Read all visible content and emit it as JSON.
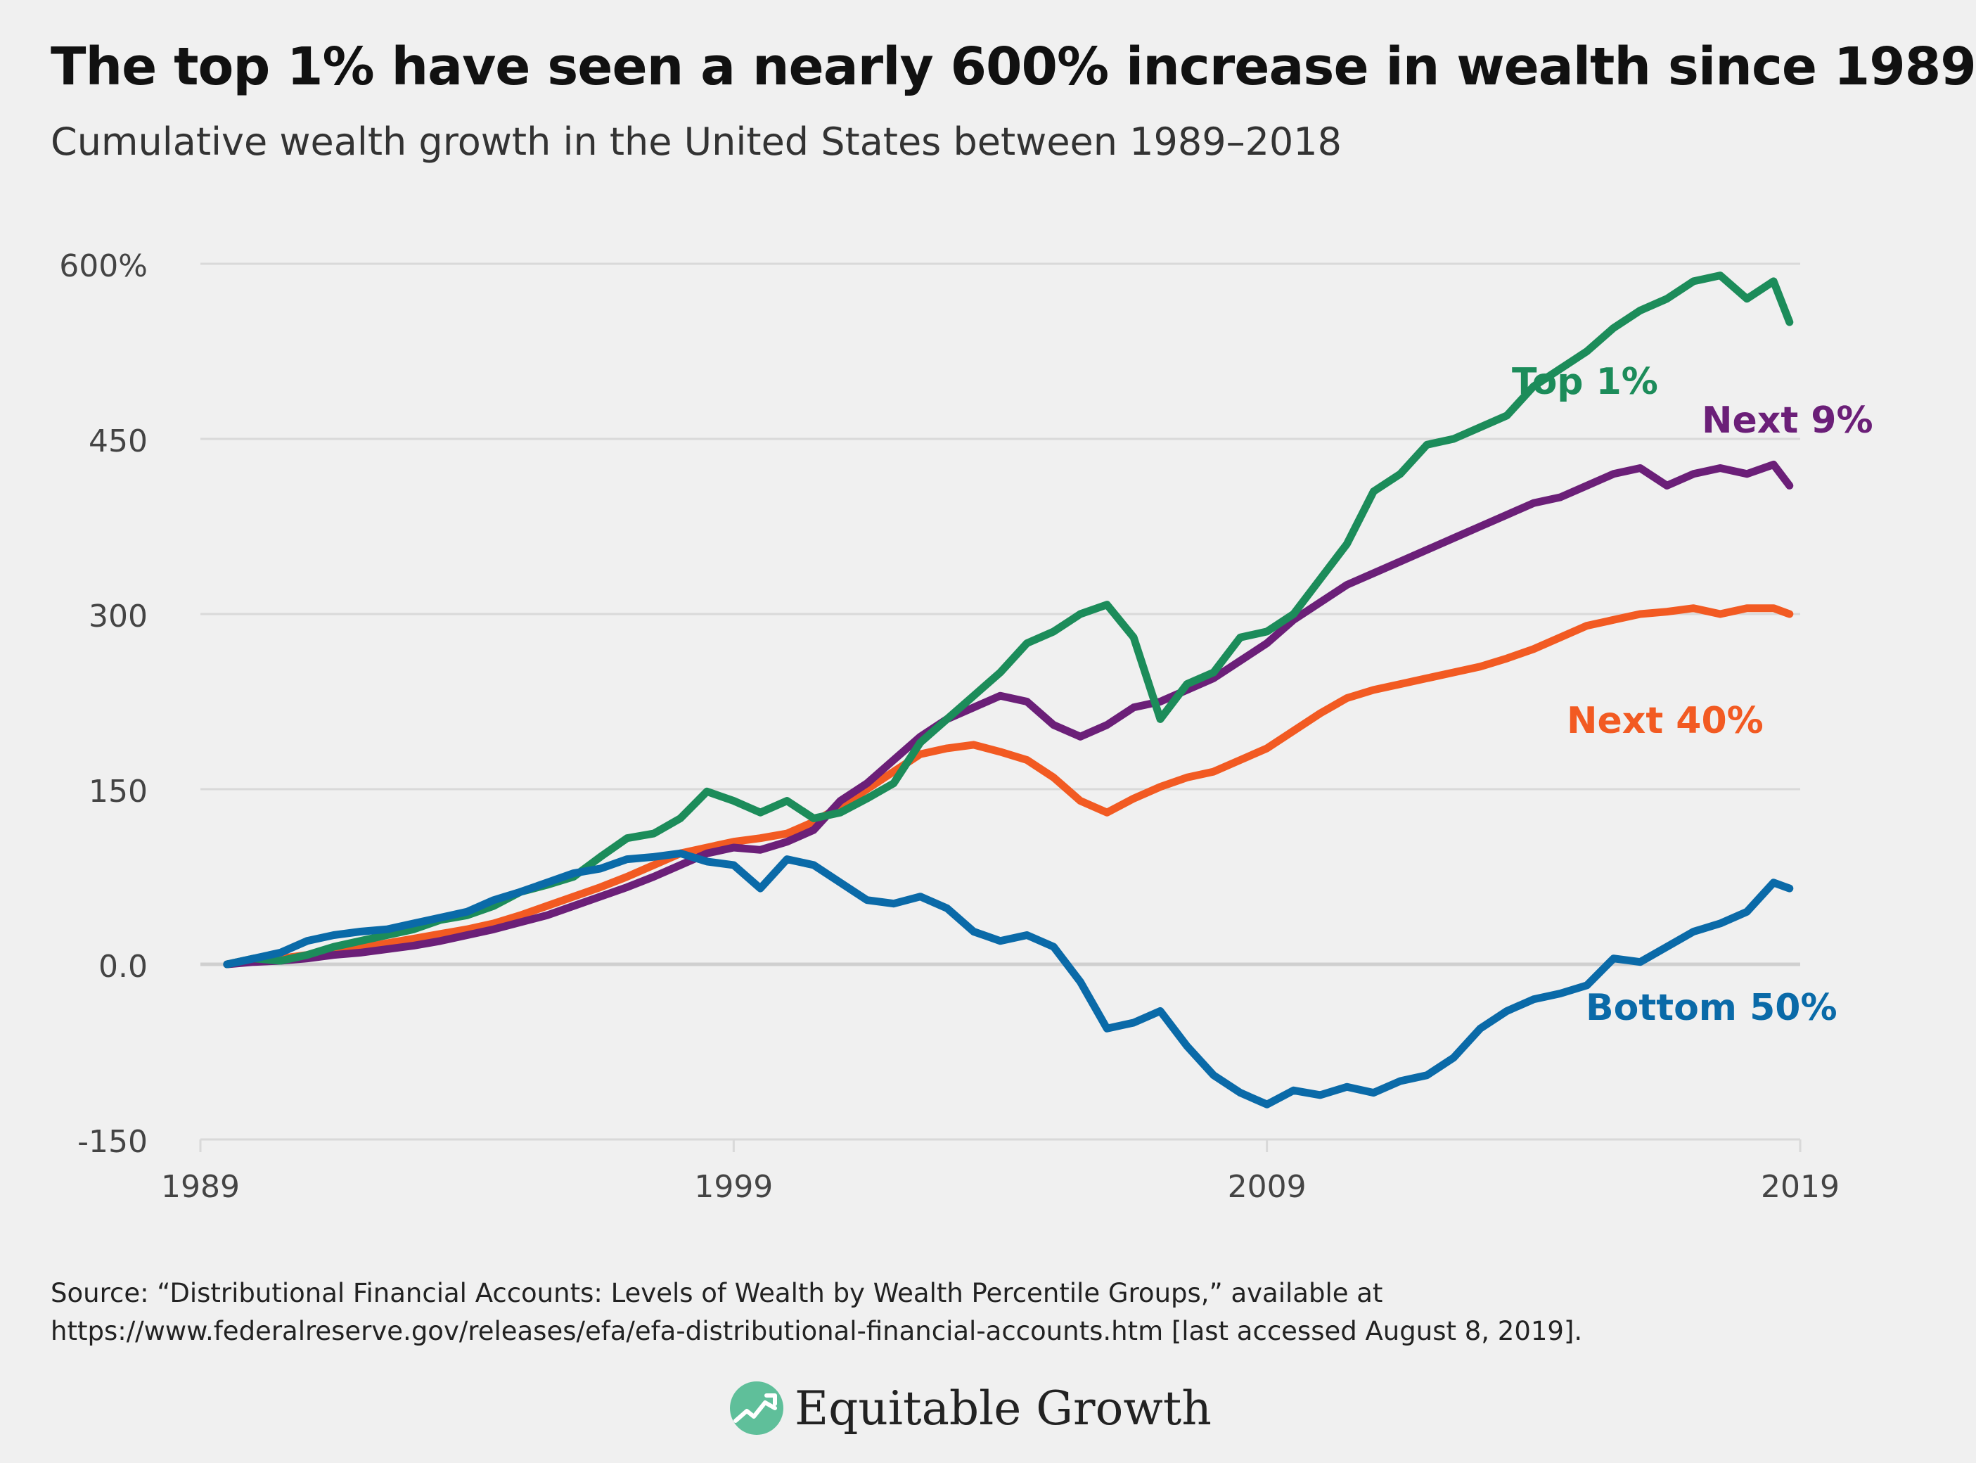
{
  "title": "The top 1% have seen a nearly 600% increase in wealth since 1989",
  "subtitle": "Cumulative wealth growth in the United States between 1989–2018",
  "source": {
    "line1": "Source: “Distributional Financial Accounts: Levels of Wealth by Wealth Percentile Groups,” available at",
    "line2": "https://www.federalreserve.gov/releases/efa/efa-distributional-financial-accounts.htm [last accessed August 8, 2019]."
  },
  "logo": {
    "text": "Equitable Growth",
    "icon": "rising-chart-logo-icon"
  },
  "colors": {
    "top1": "#1c8c5a",
    "next9": "#6b1f78",
    "next40": "#f25a22",
    "bottom50": "#0a6aa8",
    "grid": "#d9d9d9",
    "zero": "#cfcfcf",
    "tick": "#444444"
  },
  "chart_data": {
    "type": "line",
    "title": "The top 1% have seen a nearly 600% increase in wealth since 1989",
    "xlabel": "",
    "ylabel": "",
    "xlim": [
      1989,
      2019
    ],
    "ylim": [
      -150,
      600
    ],
    "x_ticks": [
      1989,
      1999,
      2009,
      2019
    ],
    "y_ticks": [
      -150,
      0,
      150,
      300,
      450,
      600
    ],
    "y_tick_labels": [
      "-150",
      "0.0",
      "150",
      "300",
      "450",
      "600%"
    ],
    "grid": "horizontal",
    "legend": "direct labels at line ends",
    "series": [
      {
        "name": "Top 1%",
        "color_key": "top1",
        "label": "Top 1%",
        "x": [
          1989.5,
          1990,
          1990.5,
          1991,
          1991.5,
          1992,
          1992.5,
          1993,
          1993.5,
          1994,
          1994.5,
          1995,
          1995.5,
          1996,
          1996.5,
          1997,
          1997.5,
          1998,
          1998.5,
          1999,
          1999.5,
          2000,
          2000.5,
          2001,
          2001.5,
          2002,
          2002.5,
          2003,
          2003.5,
          2004,
          2004.5,
          2005,
          2005.5,
          2006,
          2006.5,
          2007,
          2007.5,
          2008,
          2008.5,
          2009,
          2009.5,
          2010,
          2010.5,
          2011,
          2011.5,
          2012,
          2012.5,
          2013,
          2013.5,
          2014,
          2014.5,
          2015,
          2015.5,
          2016,
          2016.5,
          2017,
          2017.5,
          2018,
          2018.5,
          2018.8
        ],
        "values": [
          0,
          5,
          3,
          8,
          15,
          20,
          25,
          30,
          38,
          42,
          50,
          62,
          68,
          75,
          92,
          108,
          112,
          125,
          148,
          140,
          130,
          140,
          125,
          130,
          142,
          155,
          190,
          210,
          230,
          250,
          275,
          285,
          300,
          308,
          280,
          210,
          240,
          250,
          280,
          285,
          300,
          330,
          360,
          405,
          420,
          445,
          450,
          460,
          470,
          495,
          510,
          525,
          545,
          560,
          570,
          585,
          590,
          570,
          585,
          550
        ]
      },
      {
        "name": "Next 9%",
        "color_key": "next9",
        "label": "Next 9%",
        "x": [
          1989.5,
          1990,
          1990.5,
          1991,
          1991.5,
          1992,
          1992.5,
          1993,
          1993.5,
          1994,
          1994.5,
          1995,
          1995.5,
          1996,
          1996.5,
          1997,
          1997.5,
          1998,
          1998.5,
          1999,
          1999.5,
          2000,
          2000.5,
          2001,
          2001.5,
          2002,
          2002.5,
          2003,
          2003.5,
          2004,
          2004.5,
          2005,
          2005.5,
          2006,
          2006.5,
          2007,
          2007.5,
          2008,
          2008.5,
          2009,
          2009.5,
          2010,
          2010.5,
          2011,
          2011.5,
          2012,
          2012.5,
          2013,
          2013.5,
          2014,
          2014.5,
          2015,
          2015.5,
          2016,
          2016.5,
          2017,
          2017.5,
          2018,
          2018.5,
          2018.8
        ],
        "values": [
          0,
          2,
          3,
          5,
          8,
          10,
          13,
          16,
          20,
          25,
          30,
          36,
          42,
          50,
          58,
          66,
          75,
          85,
          95,
          100,
          98,
          105,
          115,
          140,
          155,
          175,
          195,
          210,
          220,
          230,
          225,
          205,
          195,
          205,
          220,
          225,
          235,
          245,
          260,
          275,
          295,
          310,
          325,
          335,
          345,
          355,
          365,
          375,
          385,
          395,
          400,
          410,
          420,
          425,
          410,
          420,
          425,
          420,
          428,
          410
        ]
      },
      {
        "name": "Next 40%",
        "color_key": "next40",
        "label": "Next 40%",
        "x": [
          1989.5,
          1990,
          1990.5,
          1991,
          1991.5,
          1992,
          1992.5,
          1993,
          1993.5,
          1994,
          1994.5,
          1995,
          1995.5,
          1996,
          1996.5,
          1997,
          1997.5,
          1998,
          1998.5,
          1999,
          1999.5,
          2000,
          2000.5,
          2001,
          2001.5,
          2002,
          2002.5,
          2003,
          2003.5,
          2004,
          2004.5,
          2005,
          2005.5,
          2006,
          2006.5,
          2007,
          2007.5,
          2008,
          2008.5,
          2009,
          2009.5,
          2010,
          2010.5,
          2011,
          2011.5,
          2012,
          2012.5,
          2013,
          2013.5,
          2014,
          2014.5,
          2015,
          2015.5,
          2016,
          2016.5,
          2017,
          2017.5,
          2018,
          2018.5,
          2018.8
        ],
        "values": [
          0,
          3,
          5,
          8,
          10,
          14,
          18,
          22,
          26,
          30,
          35,
          42,
          50,
          58,
          66,
          75,
          85,
          95,
          100,
          105,
          108,
          112,
          122,
          135,
          150,
          165,
          180,
          185,
          188,
          182,
          175,
          160,
          140,
          130,
          142,
          152,
          160,
          165,
          175,
          185,
          200,
          215,
          228,
          235,
          240,
          245,
          250,
          255,
          262,
          270,
          280,
          290,
          295,
          300,
          302,
          305,
          300,
          305,
          305,
          300
        ]
      },
      {
        "name": "Bottom 50%",
        "color_key": "bottom50",
        "label": "Bottom 50%",
        "x": [
          1989.5,
          1990,
          1990.5,
          1991,
          1991.5,
          1992,
          1992.5,
          1993,
          1993.5,
          1994,
          1994.5,
          1995,
          1995.5,
          1996,
          1996.5,
          1997,
          1997.5,
          1998,
          1998.5,
          1999,
          1999.5,
          2000,
          2000.5,
          2001,
          2001.5,
          2002,
          2002.5,
          2003,
          2003.5,
          2004,
          2004.5,
          2005,
          2005.5,
          2006,
          2006.5,
          2007,
          2007.5,
          2008,
          2008.5,
          2009,
          2009.5,
          2010,
          2010.5,
          2011,
          2011.5,
          2012,
          2012.5,
          2013,
          2013.5,
          2014,
          2014.5,
          2015,
          2015.5,
          2016,
          2016.5,
          2017,
          2017.5,
          2018,
          2018.5,
          2018.8
        ],
        "values": [
          0,
          5,
          10,
          20,
          25,
          28,
          30,
          35,
          40,
          45,
          55,
          62,
          70,
          78,
          82,
          90,
          92,
          95,
          88,
          85,
          65,
          90,
          85,
          70,
          55,
          52,
          58,
          48,
          28,
          20,
          25,
          15,
          -15,
          -55,
          -50,
          -40,
          -70,
          -95,
          -110,
          -120,
          -108,
          -112,
          -105,
          -110,
          -100,
          -95,
          -80,
          -55,
          -40,
          -30,
          -25,
          -18,
          5,
          2,
          15,
          28,
          35,
          45,
          70,
          65
        ]
      }
    ]
  }
}
